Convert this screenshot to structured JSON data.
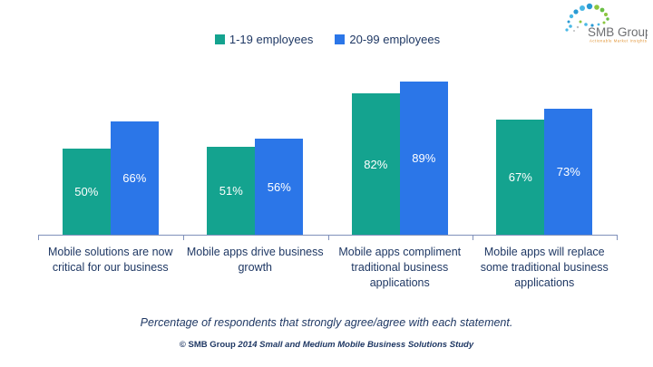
{
  "logo": {
    "name": "SMB Group",
    "tagline": "Actionable Market Insights",
    "text_color": "#6d6e71",
    "tagline_color": "#E09130"
  },
  "colors": {
    "series1": "#14A38F",
    "series2": "#2B76E8",
    "text_navy": "#1F3864",
    "axis": "#8091BA",
    "bar_value_label": "#ffffff"
  },
  "chart_data": {
    "type": "bar",
    "categories": [
      "Mobile solutions are now\ncritical for our business",
      "Mobile apps drive business\ngrowth",
      "Mobile apps compliment\ntraditional business\napplications",
      "Mobile apps will replace\nsome traditional business\napplications"
    ],
    "series": [
      {
        "name": "1-19 employees",
        "color": "#14A38F",
        "values": [
          50,
          51,
          82,
          67
        ]
      },
      {
        "name": "20-99 employees",
        "color": "#2B76E8",
        "values": [
          66,
          56,
          89,
          73
        ]
      }
    ],
    "value_suffix": "%",
    "value_labels_shown": true,
    "ylim": [
      0,
      100
    ],
    "grid": false,
    "y_axis_shown": false,
    "legend_position": "top-center",
    "title": "",
    "xlabel": "",
    "ylabel": ""
  },
  "caption": "Percentage of respondents that strongly agree/agree with each statement.",
  "footer": {
    "prefix": "© SMB Group",
    "rest": " 2014 Small and Medium Mobile Business Solutions Study"
  }
}
